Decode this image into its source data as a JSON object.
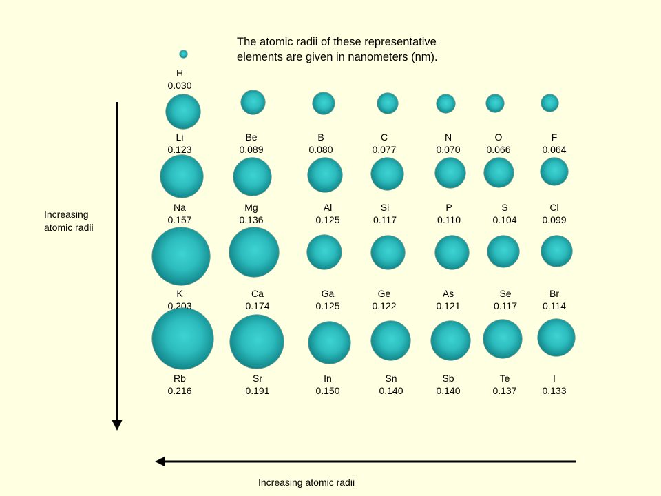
{
  "title": {
    "line1": "The atomic radii of these representative",
    "line2": "elements are given in nanometers (nm)."
  },
  "vertical_axis_label": {
    "line1": "Increasing",
    "line2": "atomic radii"
  },
  "horizontal_axis_label": "Increasing atomic radii",
  "elements": [
    {
      "symbol": "H",
      "radius": "0.030"
    },
    {
      "symbol": "Li",
      "radius": "0.123"
    },
    {
      "symbol": "Be",
      "radius": "0.089"
    },
    {
      "symbol": "B",
      "radius": "0.080"
    },
    {
      "symbol": "C",
      "radius": "0.077"
    },
    {
      "symbol": "N",
      "radius": "0.070"
    },
    {
      "symbol": "O",
      "radius": "0.066"
    },
    {
      "symbol": "F",
      "radius": "0.064"
    },
    {
      "symbol": "Na",
      "radius": "0.157"
    },
    {
      "symbol": "Mg",
      "radius": "0.136"
    },
    {
      "symbol": "Al",
      "radius": "0.125"
    },
    {
      "symbol": "Si",
      "radius": "0.117"
    },
    {
      "symbol": "P",
      "radius": "0.110"
    },
    {
      "symbol": "S",
      "radius": "0.104"
    },
    {
      "symbol": "Cl",
      "radius": "0.099"
    },
    {
      "symbol": "K",
      "radius": "0.203"
    },
    {
      "symbol": "Ca",
      "radius": "0.174"
    },
    {
      "symbol": "Ga",
      "radius": "0.125"
    },
    {
      "symbol": "Ge",
      "radius": "0.122"
    },
    {
      "symbol": "As",
      "radius": "0.121"
    },
    {
      "symbol": "Se",
      "radius": "0.117"
    },
    {
      "symbol": "Br",
      "radius": "0.114"
    },
    {
      "symbol": "Rb",
      "radius": "0.216"
    },
    {
      "symbol": "Sr",
      "radius": "0.191"
    },
    {
      "symbol": "In",
      "radius": "0.150"
    },
    {
      "symbol": "Sn",
      "radius": "0.140"
    },
    {
      "symbol": "Sb",
      "radius": "0.140"
    },
    {
      "symbol": "Te",
      "radius": "0.137"
    },
    {
      "symbol": "I",
      "radius": "0.133"
    }
  ],
  "colors": {
    "background": "#ffffe1",
    "sphere_highlight": "#3ed3d3",
    "sphere_edge": "#073f42",
    "arrow": "#000000"
  }
}
